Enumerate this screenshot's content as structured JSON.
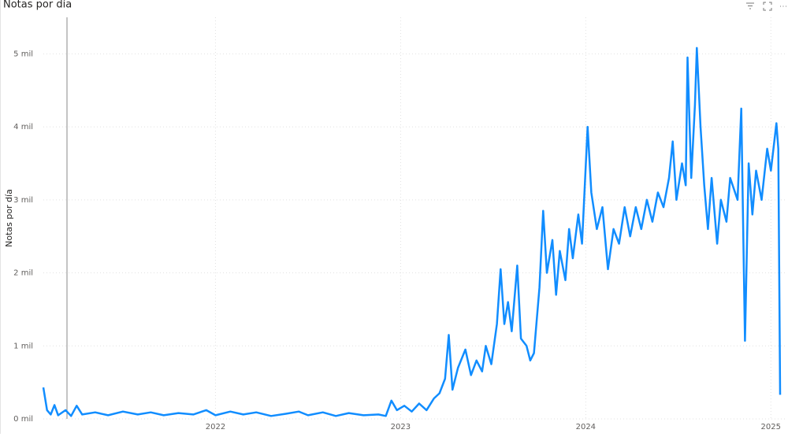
{
  "chart_data": {
    "type": "line",
    "title": "Notas por día",
    "y_label": "Notas por día",
    "color": "#118DFF",
    "grid": true,
    "xlim": [
      2021.07,
      2025.05
    ],
    "xticks": [
      2022,
      2023,
      2024,
      2025
    ],
    "ylim": [
      0,
      5500
    ],
    "yticks": [
      {
        "value": 0,
        "label": "0 mil"
      },
      {
        "value": 1000,
        "label": "1 mil"
      },
      {
        "value": 2000,
        "label": "2 mil"
      },
      {
        "value": 3000,
        "label": "3 mil"
      },
      {
        "value": 4000,
        "label": "4 mil"
      },
      {
        "value": 5000,
        "label": "5 mil"
      }
    ],
    "x": [
      2021.07,
      2021.09,
      2021.11,
      2021.13,
      2021.15,
      2021.19,
      2021.22,
      2021.25,
      2021.28,
      2021.35,
      2021.42,
      2021.5,
      2021.58,
      2021.65,
      2021.72,
      2021.8,
      2021.88,
      2021.95,
      2022.0,
      2022.08,
      2022.15,
      2022.22,
      2022.3,
      2022.38,
      2022.45,
      2022.5,
      2022.58,
      2022.65,
      2022.72,
      2022.8,
      2022.88,
      2022.92,
      2022.95,
      2022.98,
      2023.02,
      2023.06,
      2023.1,
      2023.14,
      2023.18,
      2023.21,
      2023.24,
      2023.26,
      2023.28,
      2023.31,
      2023.35,
      2023.38,
      2023.41,
      2023.44,
      2023.46,
      2023.49,
      2023.52,
      2023.54,
      2023.56,
      2023.58,
      2023.6,
      2023.63,
      2023.65,
      2023.68,
      2023.7,
      2023.72,
      2023.75,
      2023.77,
      2023.79,
      2023.82,
      2023.84,
      2023.86,
      2023.89,
      2023.91,
      2023.93,
      2023.96,
      2023.98,
      2024.01,
      2024.03,
      2024.06,
      2024.09,
      2024.12,
      2024.15,
      2024.18,
      2024.21,
      2024.24,
      2024.27,
      2024.3,
      2024.33,
      2024.36,
      2024.39,
      2024.42,
      2024.45,
      2024.47,
      2024.49,
      2024.52,
      2024.54,
      2024.55,
      2024.57,
      2024.59,
      2024.6,
      2024.62,
      2024.64,
      2024.66,
      2024.68,
      2024.71,
      2024.73,
      2024.76,
      2024.78,
      2024.82,
      2024.84,
      2024.86,
      2024.88,
      2024.9,
      2024.92,
      2024.95,
      2024.98,
      2025.0,
      2025.03,
      2025.04,
      2025.05
    ],
    "values": [
      430,
      120,
      60,
      190,
      50,
      120,
      40,
      180,
      60,
      90,
      50,
      100,
      60,
      90,
      50,
      80,
      60,
      120,
      50,
      100,
      60,
      90,
      40,
      70,
      100,
      50,
      90,
      40,
      80,
      50,
      60,
      40,
      250,
      120,
      180,
      100,
      210,
      120,
      280,
      350,
      550,
      1150,
      400,
      700,
      950,
      600,
      800,
      650,
      1000,
      750,
      1300,
      2050,
      1300,
      1600,
      1200,
      2100,
      1100,
      1000,
      800,
      900,
      1800,
      2850,
      2000,
      2450,
      1700,
      2300,
      1900,
      2600,
      2200,
      2800,
      2400,
      4000,
      3100,
      2600,
      2900,
      2050,
      2600,
      2400,
      2900,
      2500,
      2900,
      2600,
      3000,
      2700,
      3100,
      2900,
      3300,
      3800,
      3000,
      3500,
      3200,
      4950,
      3300,
      4300,
      5080,
      4000,
      3200,
      2600,
      3300,
      2400,
      3000,
      2700,
      3300,
      3000,
      4250,
      1070,
      3500,
      2800,
      3400,
      3000,
      3700,
      3400,
      4050,
      3700,
      330
    ]
  }
}
